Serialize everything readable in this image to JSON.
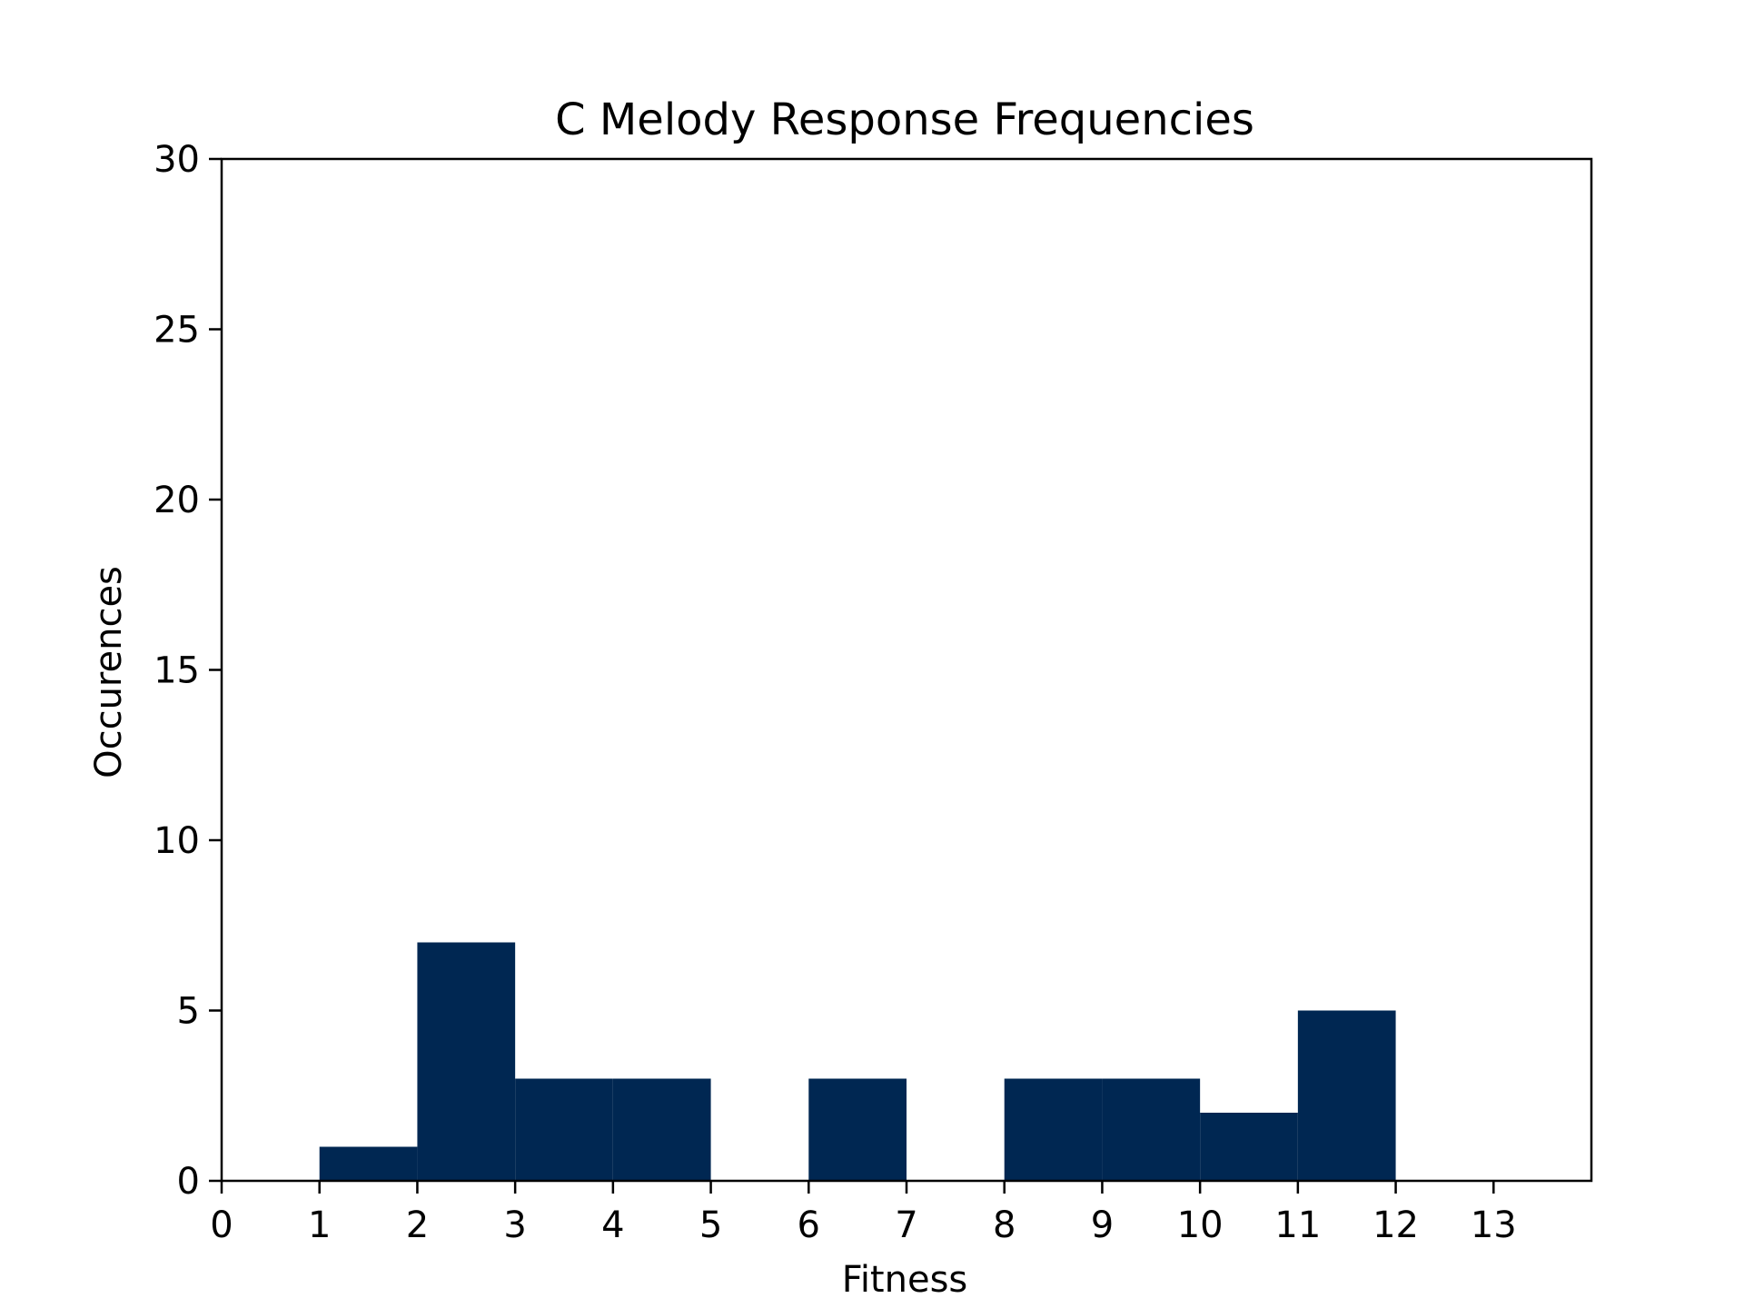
{
  "chart_data": {
    "type": "bar",
    "title": "C Melody Response Frequencies",
    "xlabel": "Fitness",
    "ylabel": "Occurences",
    "bins": [
      {
        "start": 1,
        "end": 2,
        "value": 1
      },
      {
        "start": 2,
        "end": 3,
        "value": 7
      },
      {
        "start": 3,
        "end": 4,
        "value": 3
      },
      {
        "start": 4,
        "end": 5,
        "value": 3
      },
      {
        "start": 5,
        "end": 6,
        "value": 0
      },
      {
        "start": 6,
        "end": 7,
        "value": 3
      },
      {
        "start": 7,
        "end": 8,
        "value": 0
      },
      {
        "start": 8,
        "end": 9,
        "value": 3
      },
      {
        "start": 9,
        "end": 10,
        "value": 3
      },
      {
        "start": 10,
        "end": 11,
        "value": 2
      },
      {
        "start": 11,
        "end": 12,
        "value": 5
      }
    ],
    "xlim": [
      0,
      14
    ],
    "ylim": [
      0,
      30
    ],
    "xticks": [
      "0",
      "1",
      "2",
      "3",
      "4",
      "5",
      "6",
      "7",
      "8",
      "9",
      "10",
      "11",
      "12",
      "13"
    ],
    "yticks": [
      "0",
      "5",
      "10",
      "15",
      "20",
      "25",
      "30"
    ],
    "bar_color": "#002752",
    "grid": false,
    "legend": "none"
  }
}
